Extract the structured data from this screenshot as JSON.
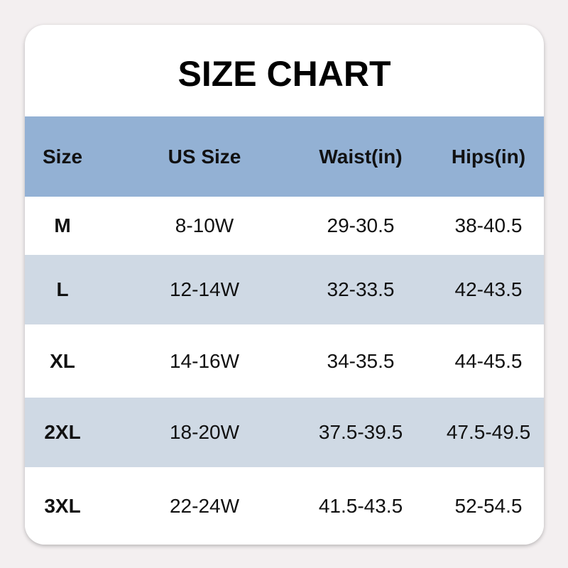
{
  "title": "SIZE CHART",
  "colors": {
    "header_bg": "#93b1d4",
    "stripe_bg": "#cfd9e4",
    "page_bg": "#f3eff0"
  },
  "headers": [
    "Size",
    "US Size",
    "Waist(in)",
    "Hips(in)"
  ],
  "rows": [
    [
      "M",
      "8-10W",
      "29-30.5",
      "38-40.5"
    ],
    [
      "L",
      "12-14W",
      "32-33.5",
      "42-43.5"
    ],
    [
      "XL",
      "14-16W",
      "34-35.5",
      "44-45.5"
    ],
    [
      "2XL",
      "18-20W",
      "37.5-39.5",
      "47.5-49.5"
    ],
    [
      "3XL",
      "22-24W",
      "41.5-43.5",
      "52-54.5"
    ]
  ]
}
